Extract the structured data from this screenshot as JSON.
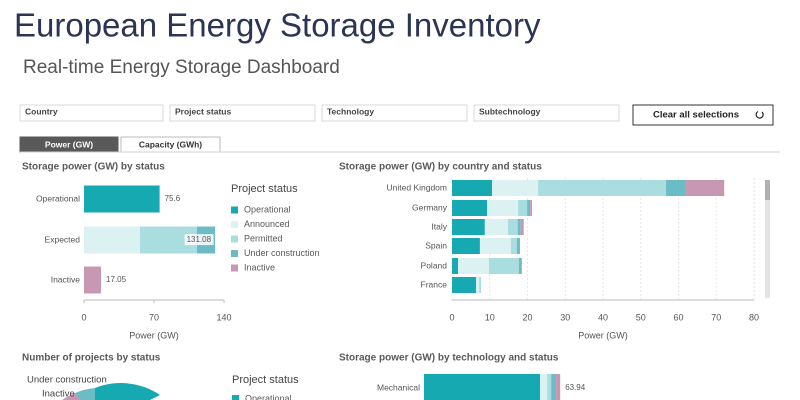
{
  "header": {
    "title": "European Energy Storage Inventory",
    "subtitle": "Real-time Energy Storage Dashboard"
  },
  "filters": [
    "Country",
    "Project status",
    "Technology",
    "Subtechnology"
  ],
  "clear_button": "Clear all selections",
  "tabs": [
    "Power (GW)",
    "Capacity (GWh)"
  ],
  "active_tab": 0,
  "charts": [
    {
      "type": "bar",
      "orientation": "horizontal",
      "stacked": true,
      "title": "Storage power (GW) by status",
      "categories": [
        "Operational",
        "Expected",
        "Inactive"
      ],
      "series": [
        {
          "name": "Operational",
          "color": "#17a9b1",
          "values": [
            75.6,
            null,
            null
          ]
        },
        {
          "name": "Announced",
          "color": "#dcf1f1",
          "values": [
            null,
            56,
            null
          ]
        },
        {
          "name": "Permitted",
          "color": "#a9dde0",
          "values": [
            null,
            57,
            null
          ]
        },
        {
          "name": "Under construction",
          "color": "#6cbcc6",
          "values": [
            null,
            18.08,
            null
          ]
        },
        {
          "name": "Inactive",
          "color": "#c898b2",
          "values": [
            null,
            null,
            17.05
          ]
        }
      ],
      "totals": [
        75.6,
        131.08,
        17.05
      ],
      "xlim": [
        0,
        140
      ],
      "xticks": [
        0,
        70,
        140
      ],
      "xlabel": "Power (GW)",
      "legend_title": "Project status"
    },
    {
      "type": "bar",
      "orientation": "horizontal",
      "stacked": true,
      "title": "Storage power (GW) by country and status",
      "categories": [
        "United Kingdom",
        "Germany",
        "Italy",
        "Spain",
        "Poland",
        "France"
      ],
      "series": [
        {
          "color": "#17a9b1",
          "values": [
            10.6,
            9.3,
            8.7,
            7.4,
            1.6,
            6.4
          ]
        },
        {
          "color": "#dcf1f1",
          "values": [
            12.2,
            8.2,
            6.1,
            8.2,
            8.2,
            0.8
          ]
        },
        {
          "color": "#a9dde0",
          "values": [
            33.9,
            2.4,
            2.6,
            1.6,
            7.9,
            0.5
          ]
        },
        {
          "color": "#6cbcc6",
          "values": [
            5.3,
            0.8,
            0.8,
            0.8,
            0.8,
            null
          ]
        },
        {
          "color": "#c898b2",
          "values": [
            10.1,
            0.5,
            0.8,
            null,
            null,
            null
          ]
        }
      ],
      "xlim": [
        0,
        80
      ],
      "xticks": [
        0,
        10,
        20,
        30,
        40,
        50,
        60,
        70,
        80
      ],
      "grid": true,
      "xlabel": "Power (GW)"
    },
    {
      "type": "bar",
      "orientation": "horizontal",
      "stacked": true,
      "title": "Storage power (GW) by technology and status",
      "categories": [
        "Mechanical"
      ],
      "series": [
        {
          "color": "#17a9b1",
          "values": [
            54.5
          ]
        },
        {
          "color": "#dcf1f1",
          "values": [
            3.3
          ]
        },
        {
          "color": "#a9dde0",
          "values": [
            1.9
          ]
        },
        {
          "color": "#6cbcc6",
          "values": [
            2.3
          ]
        },
        {
          "color": "#c898b2",
          "values": [
            1.94
          ]
        }
      ],
      "totals": [
        63.94
      ]
    },
    {
      "type": "donut",
      "title": "Number of projects by status",
      "labels": [
        "Under construction",
        "Inactive"
      ],
      "legend_title": "Project status",
      "legend_items": [
        "Operational"
      ]
    }
  ]
}
